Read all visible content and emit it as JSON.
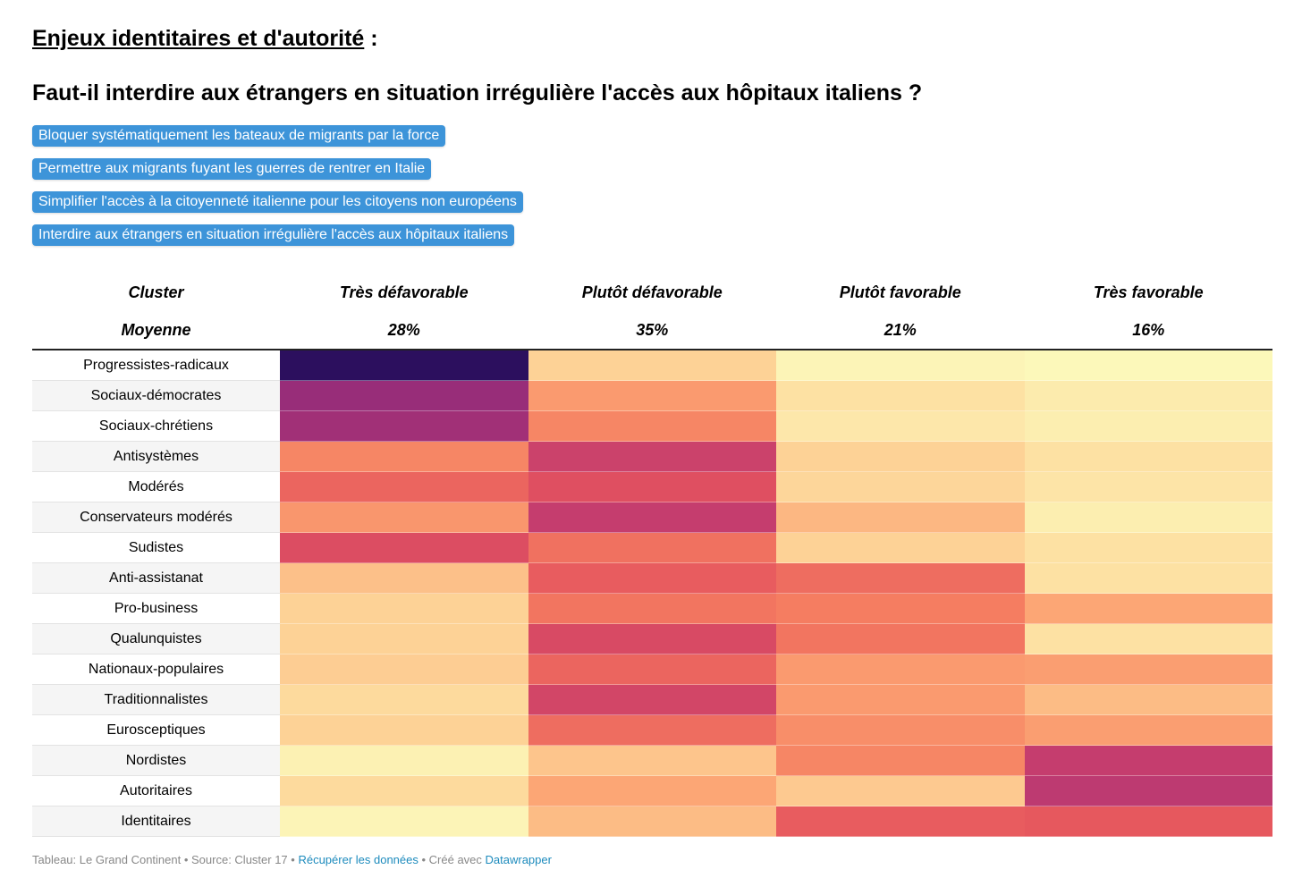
{
  "heading": {
    "main": "Enjeux identitaires et d'autorité",
    "suffix": " :"
  },
  "question": "Faut-il interdire aux étrangers en situation irrégulière l'accès aux hôpitaux italiens ?",
  "pills": [
    "Bloquer systématiquement les bateaux de migrants par la force",
    "Permettre aux migrants fuyant les guerres de rentrer en Italie",
    "Simplifier l'accès à la citoyenneté italienne pour les citoyens non européens",
    "Interdire aux étrangers en situation irrégulière l'accès aux hôpitaux italiens"
  ],
  "colors": {
    "pill": "#3d94d9"
  },
  "chart_data": {
    "type": "heatmap",
    "title": "Faut-il interdire aux étrangers en situation irrégulière l'accès aux hôpitaux italiens ?",
    "row_header": "Cluster",
    "average_label": "Moyenne",
    "columns": [
      "Très défavorable",
      "Plutôt défavorable",
      "Plutôt favorable",
      "Très favorable"
    ],
    "averages": [
      "28%",
      "35%",
      "21%",
      "16%"
    ],
    "rows": [
      {
        "name": "Progressistes-radicaux",
        "values": [
          85,
          12,
          2,
          1
        ]
      },
      {
        "name": "Sociaux-démocrates",
        "values": [
          62,
          25,
          8,
          5
        ]
      },
      {
        "name": "Sociaux-chrétiens",
        "values": [
          60,
          30,
          6,
          4
        ]
      },
      {
        "name": "Antisystèmes",
        "values": [
          30,
          50,
          12,
          8
        ]
      },
      {
        "name": "Modérés",
        "values": [
          38,
          44,
          11,
          7
        ]
      },
      {
        "name": "Conservateurs modérés",
        "values": [
          26,
          52,
          18,
          4
        ]
      },
      {
        "name": "Sudistes",
        "values": [
          45,
          35,
          12,
          8
        ]
      },
      {
        "name": "Anti-assistanat",
        "values": [
          16,
          40,
          36,
          8
        ]
      },
      {
        "name": "Pro-business",
        "values": [
          12,
          34,
          32,
          22
        ]
      },
      {
        "name": "Qualunquistes",
        "values": [
          12,
          46,
          34,
          8
        ]
      },
      {
        "name": "Nationaux-populaires",
        "values": [
          13,
          38,
          25,
          24
        ]
      },
      {
        "name": "Traditionnalistes",
        "values": [
          10,
          48,
          25,
          17
        ]
      },
      {
        "name": "Eurosceptiques",
        "values": [
          12,
          36,
          28,
          24
        ]
      },
      {
        "name": "Nordistes",
        "values": [
          3,
          15,
          30,
          52
        ]
      },
      {
        "name": "Autoritaires",
        "values": [
          10,
          22,
          14,
          54
        ]
      },
      {
        "name": "Identitaires",
        "values": [
          2,
          17,
          40,
          41
        ]
      }
    ],
    "color_scale": [
      "#fcfbbd",
      "#fdd89b",
      "#fca977",
      "#f57e61",
      "#e4525e",
      "#c13b70",
      "#902a7b",
      "#5b1a78",
      "#2c0f5e"
    ],
    "value_range": [
      0,
      85
    ]
  },
  "footer": {
    "prefix": "Tableau: Le Grand Continent • Source: Cluster 17 • ",
    "link1": "Récupérer les données",
    "middle": " • Créé avec ",
    "link2": "Datawrapper"
  }
}
